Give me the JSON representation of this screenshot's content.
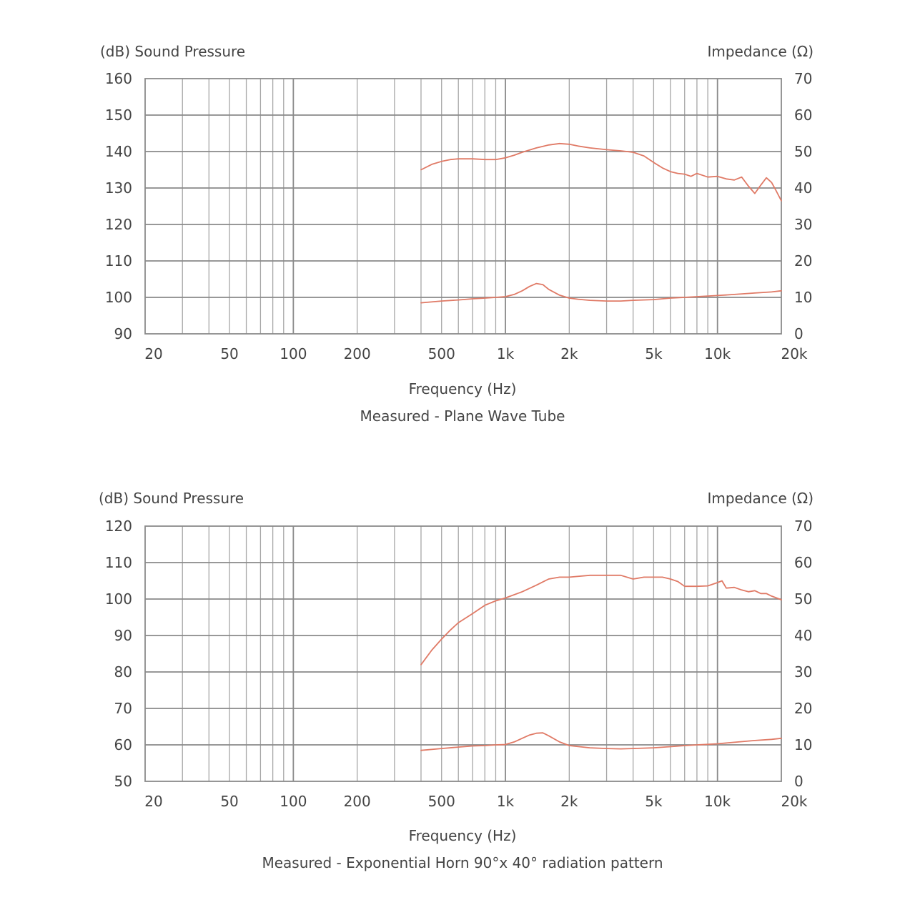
{
  "colors": {
    "curve": "#e07a66",
    "grid": "#a6a6a6",
    "text": "#444444"
  },
  "chart_data": [
    {
      "type": "line",
      "title": "Measured - Plane Wave Tube",
      "xlabel": "Frequency (Hz)",
      "ylabel_left": "(dB) Sound Pressure",
      "ylabel_right": "Impedance (Ω)",
      "x_scale": "log",
      "xlim": [
        20,
        20000
      ],
      "ylim_left": [
        90,
        160
      ],
      "ylim_right": [
        0,
        70
      ],
      "x_ticks": [
        20,
        50,
        100,
        200,
        500,
        1000,
        2000,
        5000,
        10000,
        20000
      ],
      "x_tick_labels": [
        "20",
        "50",
        "100",
        "200",
        "500",
        "1k",
        "2k",
        "5k",
        "10k",
        "20k"
      ],
      "y_ticks_left": [
        "90",
        "100",
        "110",
        "120",
        "130",
        "140",
        "150",
        "160"
      ],
      "y_ticks_right": [
        "0",
        "10",
        "20",
        "30",
        "40",
        "50",
        "60",
        "70"
      ],
      "grid": true,
      "series": [
        {
          "axis": "left",
          "x": [
            400,
            450,
            500,
            550,
            600,
            700,
            800,
            900,
            1000,
            1100,
            1200,
            1400,
            1600,
            1800,
            2000,
            2200,
            2500,
            3000,
            3500,
            4000,
            4500,
            5000,
            5500,
            6000,
            6500,
            7000,
            7500,
            8000,
            8500,
            9000,
            10000,
            11000,
            12000,
            13000,
            14000,
            15000,
            16000,
            17000,
            18000,
            19000,
            20000
          ],
          "y": [
            135,
            136.5,
            137.3,
            137.8,
            138,
            138,
            137.8,
            137.8,
            138.3,
            139,
            139.8,
            141,
            141.8,
            142.2,
            142,
            141.5,
            141,
            140.5,
            140.2,
            139.8,
            138.8,
            137,
            135.5,
            134.5,
            134,
            133.8,
            133.2,
            134,
            133.5,
            133,
            133.2,
            132.5,
            132.2,
            133,
            130.5,
            128.5,
            130.8,
            132.8,
            131.5,
            129,
            126.5
          ]
        },
        {
          "axis": "right",
          "x": [
            400,
            500,
            600,
            700,
            800,
            900,
            1000,
            1100,
            1200,
            1300,
            1400,
            1500,
            1600,
            1800,
            2000,
            2200,
            2500,
            3000,
            3500,
            4000,
            5000,
            6000,
            7000,
            8000,
            10000,
            12000,
            15000,
            18000,
            20000
          ],
          "y": [
            8.5,
            9,
            9.3,
            9.6,
            9.8,
            10,
            10.2,
            10.8,
            11.8,
            13,
            13.8,
            13.5,
            12.2,
            10.6,
            9.8,
            9.5,
            9.2,
            9,
            9,
            9.2,
            9.4,
            9.8,
            10,
            10.2,
            10.5,
            10.8,
            11.2,
            11.5,
            11.8
          ]
        }
      ]
    },
    {
      "type": "line",
      "title": "Measured - Exponential Horn 90°x 40° radiation pattern",
      "xlabel": "Frequency (Hz)",
      "ylabel_left": "(dB) Sound Pressure",
      "ylabel_right": "Impedance (Ω)",
      "x_scale": "log",
      "xlim": [
        20,
        20000
      ],
      "ylim_left": [
        50,
        120
      ],
      "ylim_right": [
        0,
        70
      ],
      "x_ticks": [
        20,
        50,
        100,
        200,
        500,
        1000,
        2000,
        5000,
        10000,
        20000
      ],
      "x_tick_labels": [
        "20",
        "50",
        "100",
        "200",
        "500",
        "1k",
        "2k",
        "5k",
        "10k",
        "20k"
      ],
      "y_ticks_left": [
        "50",
        "60",
        "70",
        "80",
        "90",
        "100",
        "110",
        "120"
      ],
      "y_ticks_right": [
        "0",
        "10",
        "20",
        "30",
        "40",
        "50",
        "60",
        "70"
      ],
      "grid": true,
      "series": [
        {
          "axis": "left",
          "x": [
            400,
            450,
            500,
            550,
            600,
            700,
            800,
            900,
            1000,
            1200,
            1400,
            1600,
            1800,
            2000,
            2500,
            3000,
            3500,
            4000,
            4500,
            5000,
            5500,
            6000,
            6500,
            7000,
            8000,
            9000,
            10000,
            10500,
            11000,
            12000,
            13000,
            14000,
            15000,
            16000,
            17000,
            18000,
            20000
          ],
          "y": [
            82,
            86,
            89,
            91.5,
            93.5,
            96,
            98.3,
            99.5,
            100.3,
            102,
            103.8,
            105.5,
            106,
            106,
            106.5,
            106.5,
            106.5,
            105.5,
            106,
            106,
            106,
            105.5,
            104.8,
            103.5,
            103.5,
            103.6,
            104.5,
            105,
            103,
            103.2,
            102.5,
            102,
            102.3,
            101.5,
            101.5,
            100.8,
            99.8
          ]
        },
        {
          "axis": "right",
          "x": [
            400,
            500,
            600,
            700,
            800,
            900,
            1000,
            1100,
            1200,
            1300,
            1400,
            1500,
            1600,
            1800,
            2000,
            2500,
            3000,
            3500,
            4000,
            5000,
            6000,
            7000,
            8000,
            10000,
            12000,
            15000,
            18000,
            20000
          ],
          "y": [
            8.5,
            9,
            9.4,
            9.7,
            9.8,
            10,
            10.1,
            10.8,
            11.8,
            12.7,
            13.2,
            13.3,
            12.5,
            10.8,
            9.8,
            9.2,
            9,
            8.9,
            9,
            9.2,
            9.5,
            9.8,
            10,
            10.3,
            10.7,
            11.2,
            11.5,
            11.8
          ]
        }
      ]
    }
  ]
}
